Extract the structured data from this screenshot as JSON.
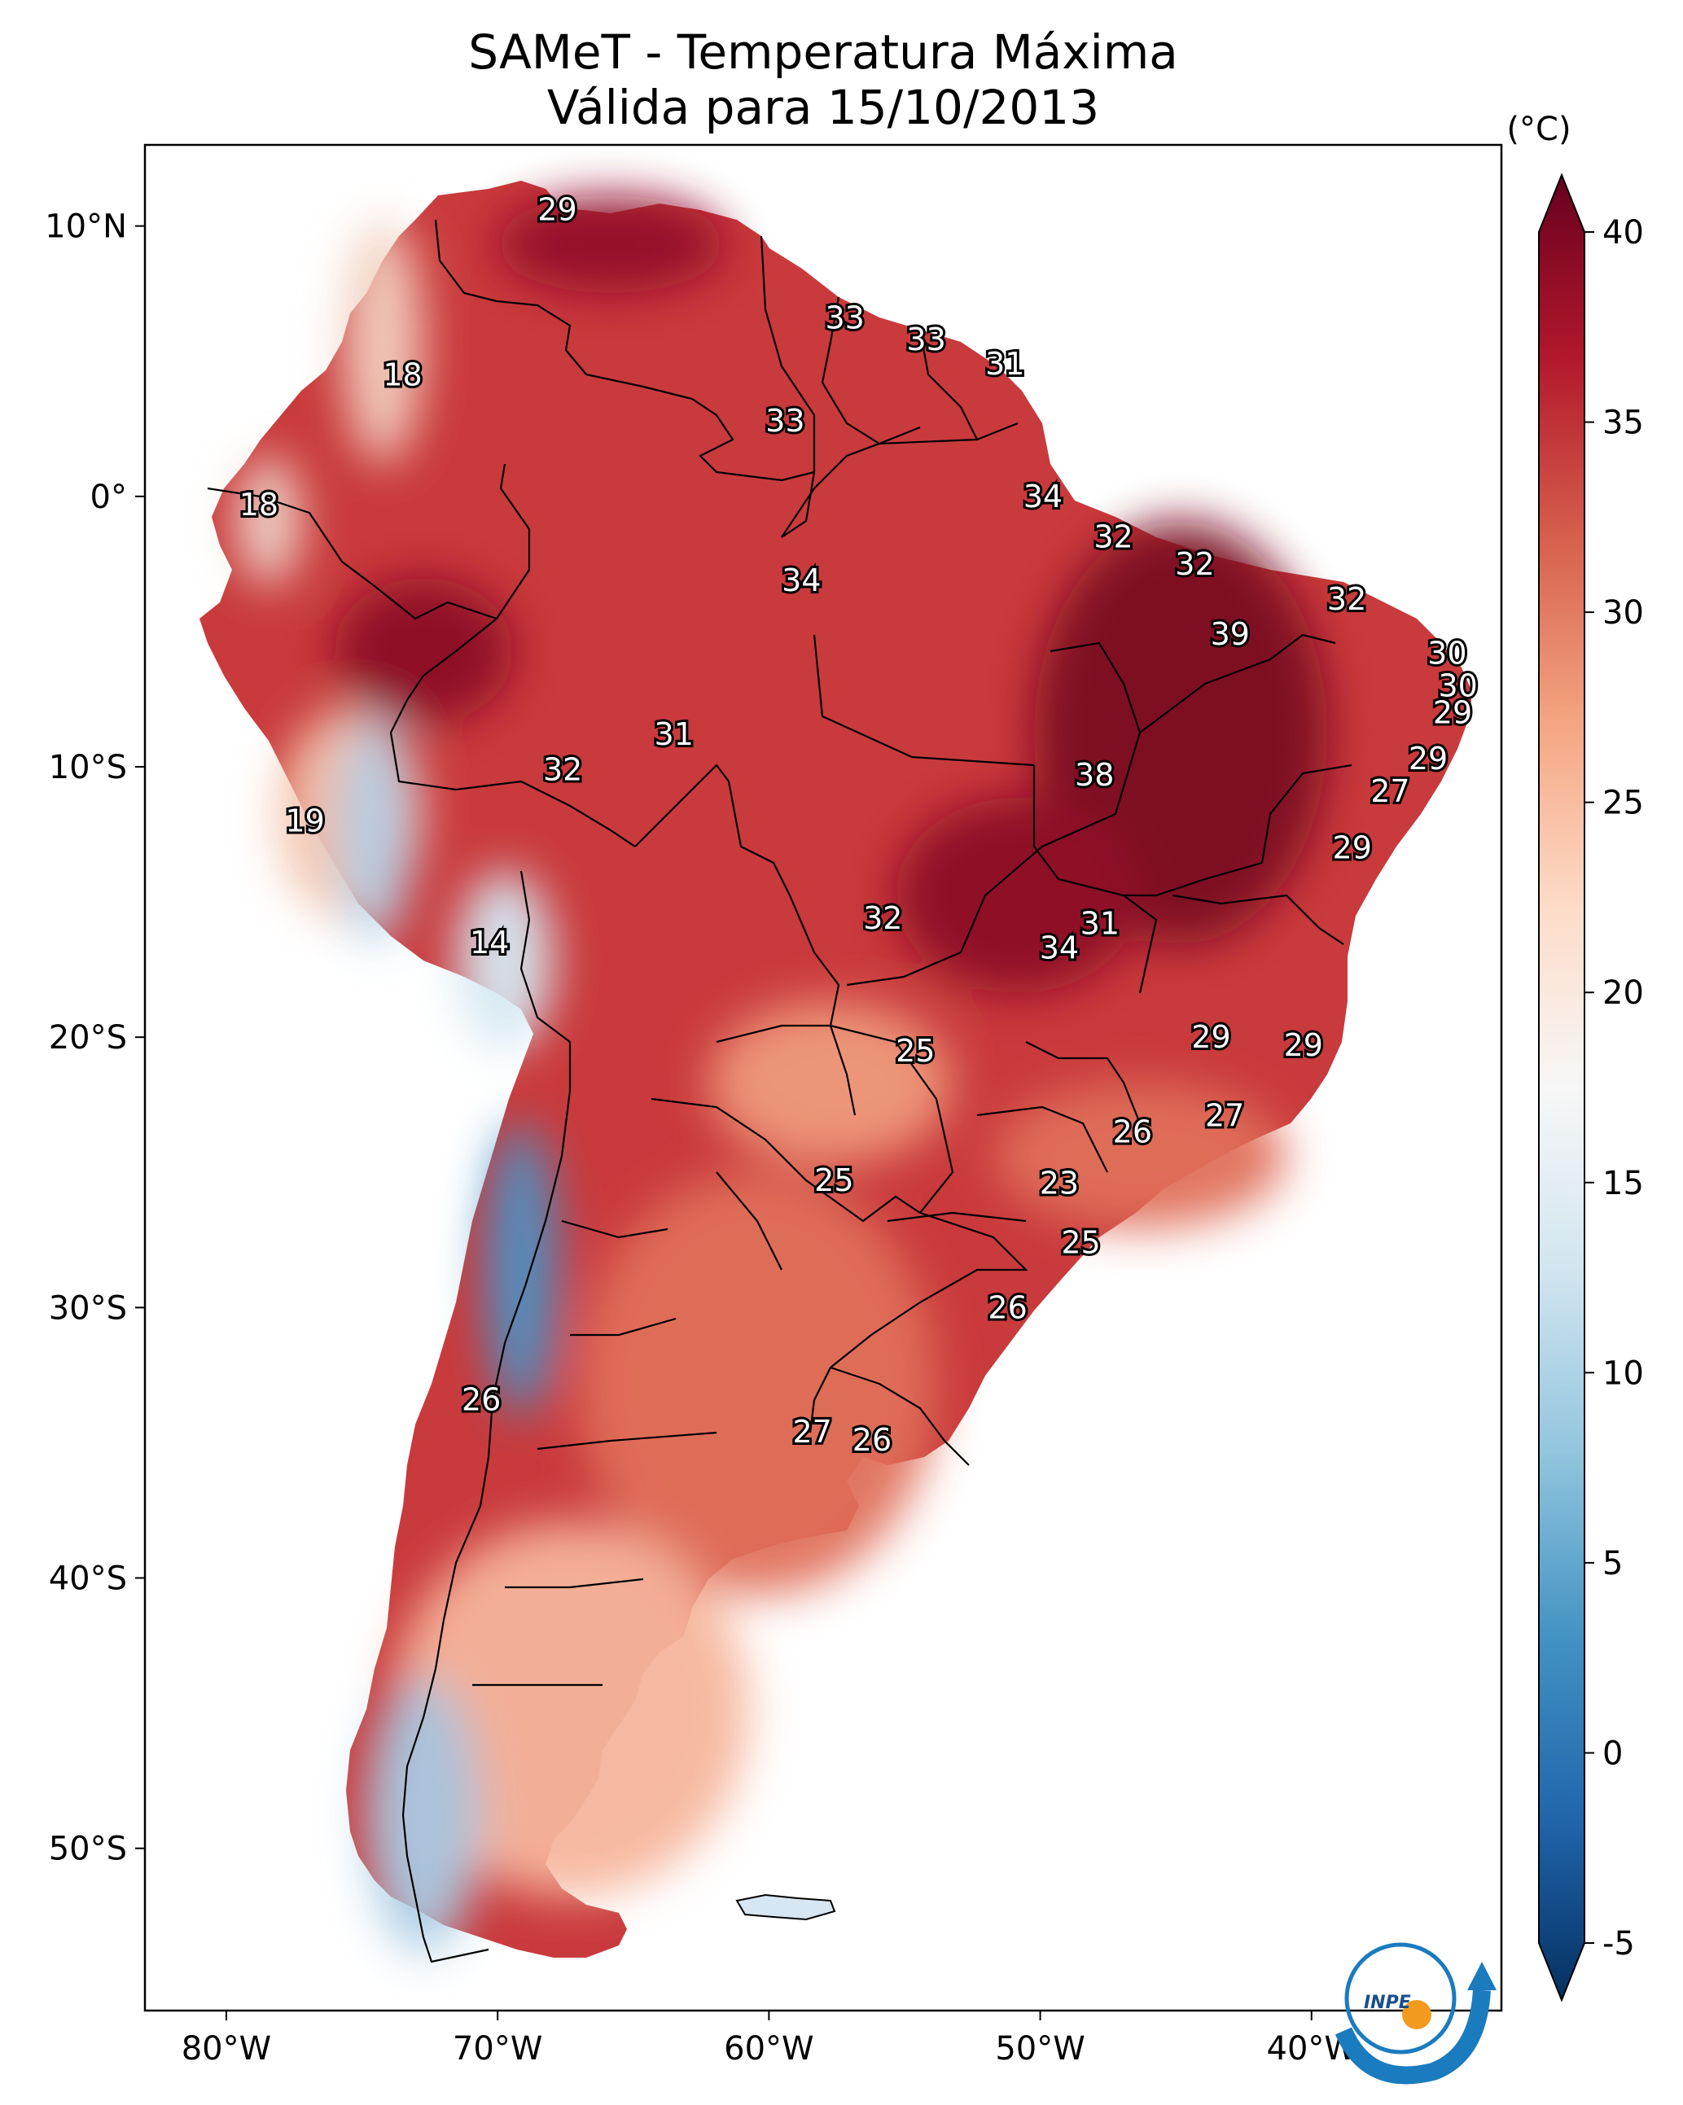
{
  "title": {
    "line1": "SAMeT - Temperatura Máxima",
    "line2": "Válida para 15/10/2013"
  },
  "map": {
    "lon_range": [
      -83,
      -33
    ],
    "lat_range": [
      -56,
      13
    ],
    "lon_ticks": [
      {
        "value": -80,
        "label": "80°W"
      },
      {
        "value": -70,
        "label": "70°W"
      },
      {
        "value": -60,
        "label": "60°W"
      },
      {
        "value": -50,
        "label": "50°W"
      },
      {
        "value": -40,
        "label": "40°W"
      }
    ],
    "lat_ticks": [
      {
        "value": 10,
        "label": "10°N"
      },
      {
        "value": 0,
        "label": "0°"
      },
      {
        "value": -10,
        "label": "10°S"
      },
      {
        "value": -20,
        "label": "20°S"
      },
      {
        "value": -30,
        "label": "30°S"
      },
      {
        "value": -40,
        "label": "40°S"
      },
      {
        "value": -50,
        "label": "50°S"
      }
    ],
    "point_values": [
      {
        "lon": -67.8,
        "lat": 10.6,
        "value": "29"
      },
      {
        "lon": -57.2,
        "lat": 6.6,
        "value": "33"
      },
      {
        "lon": -54.2,
        "lat": 5.8,
        "value": "33"
      },
      {
        "lon": -51.3,
        "lat": 4.9,
        "value": "31"
      },
      {
        "lon": -73.5,
        "lat": 4.5,
        "value": "18"
      },
      {
        "lon": -59.4,
        "lat": 2.8,
        "value": "33"
      },
      {
        "lon": -49.9,
        "lat": 0.0,
        "value": "34"
      },
      {
        "lon": -78.8,
        "lat": -0.3,
        "value": "18"
      },
      {
        "lon": -47.3,
        "lat": -1.5,
        "value": "32"
      },
      {
        "lon": -44.3,
        "lat": -2.5,
        "value": "32"
      },
      {
        "lon": -38.7,
        "lat": -3.8,
        "value": "32"
      },
      {
        "lon": -58.8,
        "lat": -3.1,
        "value": "34"
      },
      {
        "lon": -43.0,
        "lat": -5.1,
        "value": "39"
      },
      {
        "lon": -35.0,
        "lat": -5.8,
        "value": "30"
      },
      {
        "lon": -34.6,
        "lat": -7.0,
        "value": "30"
      },
      {
        "lon": -34.8,
        "lat": -8.0,
        "value": "29"
      },
      {
        "lon": -63.5,
        "lat": -8.8,
        "value": "31"
      },
      {
        "lon": -67.6,
        "lat": -10.1,
        "value": "32"
      },
      {
        "lon": -35.7,
        "lat": -9.7,
        "value": "29"
      },
      {
        "lon": -48.0,
        "lat": -10.3,
        "value": "38"
      },
      {
        "lon": -37.1,
        "lat": -10.9,
        "value": "27"
      },
      {
        "lon": -77.1,
        "lat": -12.0,
        "value": "19"
      },
      {
        "lon": -38.5,
        "lat": -13.0,
        "value": "29"
      },
      {
        "lon": -55.8,
        "lat": -15.6,
        "value": "32"
      },
      {
        "lon": -47.8,
        "lat": -15.8,
        "value": "31"
      },
      {
        "lon": -49.3,
        "lat": -16.7,
        "value": "34"
      },
      {
        "lon": -70.3,
        "lat": -16.5,
        "value": "14"
      },
      {
        "lon": -43.7,
        "lat": -20.0,
        "value": "29"
      },
      {
        "lon": -40.3,
        "lat": -20.3,
        "value": "29"
      },
      {
        "lon": -54.6,
        "lat": -20.5,
        "value": "25"
      },
      {
        "lon": -43.2,
        "lat": -22.9,
        "value": "27"
      },
      {
        "lon": -46.6,
        "lat": -23.5,
        "value": "26"
      },
      {
        "lon": -57.6,
        "lat": -25.3,
        "value": "25"
      },
      {
        "lon": -49.3,
        "lat": -25.4,
        "value": "23"
      },
      {
        "lon": -48.5,
        "lat": -27.6,
        "value": "25"
      },
      {
        "lon": -51.2,
        "lat": -30.0,
        "value": "26"
      },
      {
        "lon": -70.6,
        "lat": -33.4,
        "value": "26"
      },
      {
        "lon": -58.4,
        "lat": -34.6,
        "value": "27"
      },
      {
        "lon": -56.2,
        "lat": -34.9,
        "value": "26"
      }
    ]
  },
  "colorbar": {
    "unit_label": "(°C)",
    "min": -5,
    "max": 40,
    "ticks": [
      "40",
      "35",
      "30",
      "25",
      "20",
      "15",
      "10",
      "5",
      "0",
      "-5"
    ],
    "colors": [
      "#053061",
      "#2166ac",
      "#4393c3",
      "#92c5de",
      "#d1e5f0",
      "#f7f7f7",
      "#fddbc7",
      "#f4a582",
      "#d6604d",
      "#b2182b",
      "#67001f"
    ]
  },
  "logo": {
    "text": "INPE",
    "ring_color": "#1a7bbf",
    "dot_color": "#f29a1d"
  }
}
